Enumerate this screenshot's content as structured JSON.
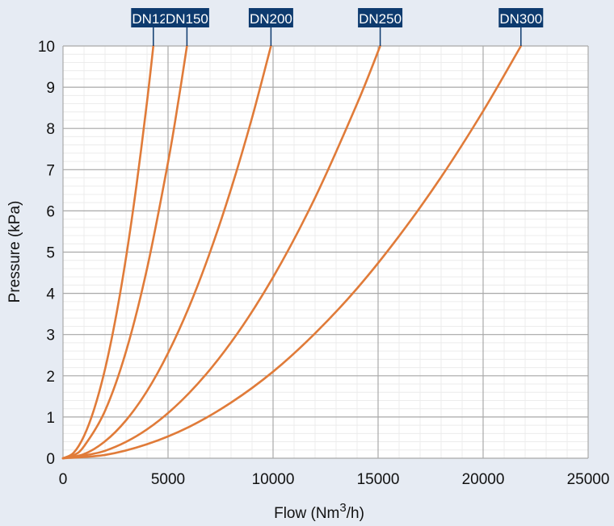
{
  "chart_data": {
    "type": "line",
    "xlabel": "Flow (Nm",
    "xlabel_superscript": "3",
    "xlabel_suffix": "/h)",
    "ylabel": "Pressure (kPa)",
    "xlim": [
      0,
      25000
    ],
    "ylim": [
      0,
      10
    ],
    "xticks": [
      0,
      5000,
      10000,
      15000,
      20000,
      25000
    ],
    "yticks": [
      0,
      1,
      2,
      3,
      4,
      5,
      6,
      7,
      8,
      9,
      10
    ],
    "grid": true,
    "line_color": "#e07b39",
    "tag_color": "#0d3a6e",
    "background_color": "#e6ebf3",
    "series": [
      {
        "name": "DN125",
        "x": [
          0,
          500,
          1000,
          1500,
          2000,
          2500,
          3000,
          3500,
          4000,
          4300
        ],
        "y": [
          0,
          0.13,
          0.54,
          1.22,
          2.16,
          3.38,
          4.87,
          6.63,
          8.65,
          10
        ]
      },
      {
        "name": "DN150",
        "x": [
          0,
          500,
          1000,
          2000,
          3000,
          4000,
          5000,
          5500,
          5900
        ],
        "y": [
          0,
          0.07,
          0.29,
          1.15,
          2.59,
          4.6,
          7.18,
          8.69,
          10
        ]
      },
      {
        "name": "DN200",
        "x": [
          0,
          1000,
          2000,
          3000,
          4000,
          5000,
          6000,
          7000,
          8000,
          9000,
          9900
        ],
        "y": [
          0,
          0.1,
          0.41,
          0.92,
          1.63,
          2.55,
          3.67,
          5.0,
          6.53,
          8.26,
          10
        ]
      },
      {
        "name": "DN250",
        "x": [
          0,
          2000,
          4000,
          6000,
          8000,
          10000,
          12000,
          14000,
          15100
        ],
        "y": [
          0,
          0.18,
          0.7,
          1.58,
          2.81,
          4.39,
          6.32,
          8.6,
          10
        ]
      },
      {
        "name": "DN300",
        "x": [
          0,
          2000,
          4000,
          6000,
          8000,
          10000,
          12000,
          14000,
          16000,
          18000,
          20000,
          21800
        ],
        "y": [
          0,
          0.08,
          0.34,
          0.76,
          1.35,
          2.1,
          3.03,
          4.12,
          5.39,
          6.82,
          8.42,
          10
        ]
      }
    ]
  }
}
